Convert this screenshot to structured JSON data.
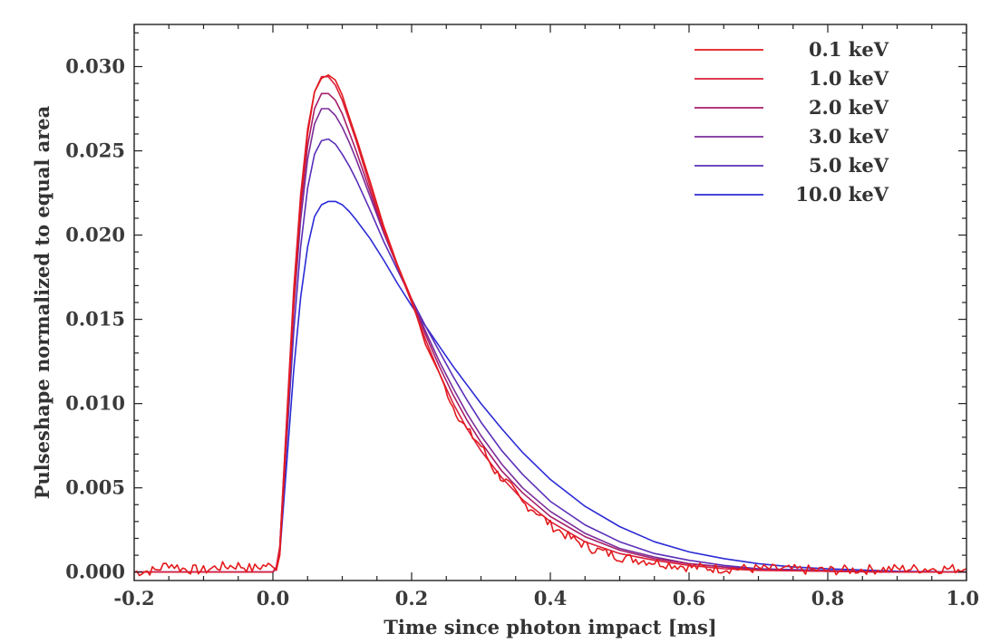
{
  "chart_data": {
    "type": "line",
    "xlabel": "Time since photon impact [ms]",
    "ylabel": "Pulseshape normalized to equal area",
    "xlim": [
      -0.2,
      1.0
    ],
    "ylim": [
      -0.0005,
      0.0325
    ],
    "x_ticks": [
      -0.2,
      0.0,
      0.2,
      0.4,
      0.6,
      0.8,
      1.0
    ],
    "x_tick_labels": [
      "-0.2",
      "0.0",
      "0.2",
      "0.4",
      "0.6",
      "0.8",
      "1.0"
    ],
    "y_ticks": [
      0.0,
      0.005,
      0.01,
      0.015,
      0.02,
      0.025,
      0.03
    ],
    "y_tick_labels": [
      "0.000",
      "0.005",
      "0.010",
      "0.015",
      "0.020",
      "0.025",
      "0.030"
    ],
    "grid": false,
    "legend_position": "top-right",
    "series": [
      {
        "name": "0.1 keV",
        "color": "#e41a1c",
        "noisy": true,
        "x": [
          -0.2,
          -0.17,
          -0.15,
          -0.13,
          -0.1,
          -0.08,
          -0.05,
          -0.03,
          -0.01,
          0.0,
          0.005,
          0.01,
          0.02,
          0.03,
          0.04,
          0.05,
          0.06,
          0.07,
          0.08,
          0.09,
          0.1,
          0.11,
          0.12,
          0.14,
          0.16,
          0.18,
          0.2,
          0.22,
          0.24,
          0.26,
          0.28,
          0.3,
          0.32,
          0.34,
          0.36,
          0.38,
          0.4,
          0.43,
          0.46,
          0.5,
          0.55,
          0.6,
          0.65,
          0.7,
          0.8,
          0.9,
          1.0
        ],
        "values": [
          0.0,
          0.0001,
          0.0005,
          0.0002,
          0.0001,
          0.0003,
          0.0004,
          0.0002,
          0.0004,
          0.0003,
          0.0001,
          0.001,
          0.0085,
          0.016,
          0.022,
          0.026,
          0.0285,
          0.0293,
          0.0295,
          0.0292,
          0.0283,
          0.027,
          0.0258,
          0.0232,
          0.0205,
          0.0182,
          0.0162,
          0.0135,
          0.0118,
          0.0098,
          0.0084,
          0.0075,
          0.006,
          0.0052,
          0.0041,
          0.0036,
          0.0028,
          0.002,
          0.0014,
          0.0009,
          0.0006,
          0.0003,
          0.0002,
          0.0002,
          0.0001,
          0.0002,
          0.0002
        ]
      },
      {
        "name": "1.0 keV",
        "color": "#d91f3a",
        "noisy": false,
        "x": [
          -0.2,
          -0.1,
          0.0,
          0.005,
          0.01,
          0.02,
          0.03,
          0.04,
          0.05,
          0.06,
          0.07,
          0.08,
          0.09,
          0.1,
          0.11,
          0.12,
          0.14,
          0.16,
          0.18,
          0.2,
          0.22,
          0.24,
          0.26,
          0.28,
          0.3,
          0.33,
          0.36,
          0.4,
          0.45,
          0.5,
          0.55,
          0.6,
          0.65,
          0.7,
          0.8,
          0.9,
          1.0
        ],
        "values": [
          0.0,
          0.0,
          0.0,
          0.0003,
          0.0015,
          0.0092,
          0.0168,
          0.0224,
          0.0263,
          0.0285,
          0.0294,
          0.0294,
          0.0289,
          0.028,
          0.0268,
          0.0256,
          0.0229,
          0.0203,
          0.0181,
          0.016,
          0.0138,
          0.0118,
          0.01,
          0.0085,
          0.0072,
          0.0056,
          0.0043,
          0.003,
          0.0018,
          0.0011,
          0.0007,
          0.0004,
          0.0002,
          0.0001,
          5e-05,
          0.0,
          0.0
        ]
      },
      {
        "name": "2.0 keV",
        "color": "#a61e6a",
        "noisy": false,
        "x": [
          -0.2,
          -0.1,
          0.0,
          0.005,
          0.01,
          0.02,
          0.03,
          0.04,
          0.05,
          0.06,
          0.07,
          0.08,
          0.09,
          0.1,
          0.11,
          0.12,
          0.14,
          0.16,
          0.18,
          0.2,
          0.22,
          0.24,
          0.26,
          0.28,
          0.3,
          0.33,
          0.36,
          0.4,
          0.45,
          0.5,
          0.55,
          0.6,
          0.65,
          0.7,
          0.8,
          0.9,
          1.0
        ],
        "values": [
          0.0,
          0.0,
          0.0,
          0.0003,
          0.0015,
          0.009,
          0.0162,
          0.0216,
          0.0253,
          0.0275,
          0.0284,
          0.0284,
          0.028,
          0.0272,
          0.0261,
          0.025,
          0.0226,
          0.0202,
          0.0181,
          0.0161,
          0.0141,
          0.0122,
          0.0105,
          0.009,
          0.0077,
          0.006,
          0.0047,
          0.0033,
          0.0021,
          0.0013,
          0.0008,
          0.0005,
          0.0003,
          0.00015,
          5e-05,
          0.0,
          0.0
        ]
      },
      {
        "name": "3.0 keV",
        "color": "#7b2d9a",
        "noisy": false,
        "x": [
          -0.2,
          -0.1,
          0.0,
          0.005,
          0.01,
          0.02,
          0.03,
          0.04,
          0.05,
          0.06,
          0.07,
          0.08,
          0.09,
          0.1,
          0.11,
          0.12,
          0.14,
          0.16,
          0.18,
          0.2,
          0.22,
          0.24,
          0.26,
          0.28,
          0.3,
          0.33,
          0.36,
          0.4,
          0.45,
          0.5,
          0.55,
          0.6,
          0.65,
          0.7,
          0.8,
          0.9,
          1.0
        ],
        "values": [
          0.0,
          0.0,
          0.0,
          0.0003,
          0.0014,
          0.0086,
          0.0156,
          0.0209,
          0.0245,
          0.0266,
          0.0275,
          0.0275,
          0.0271,
          0.0264,
          0.0255,
          0.0245,
          0.0223,
          0.0201,
          0.0181,
          0.0162,
          0.0143,
          0.0125,
          0.0109,
          0.0094,
          0.0081,
          0.0064,
          0.005,
          0.0036,
          0.0023,
          0.0014,
          0.0009,
          0.0005,
          0.0003,
          0.00015,
          5e-05,
          0.0,
          0.0
        ]
      },
      {
        "name": "5.0 keV",
        "color": "#5a2fb8",
        "noisy": false,
        "x": [
          -0.2,
          -0.1,
          0.0,
          0.005,
          0.01,
          0.02,
          0.03,
          0.04,
          0.05,
          0.06,
          0.07,
          0.08,
          0.09,
          0.1,
          0.11,
          0.12,
          0.14,
          0.16,
          0.18,
          0.2,
          0.22,
          0.24,
          0.26,
          0.28,
          0.3,
          0.33,
          0.36,
          0.4,
          0.45,
          0.5,
          0.55,
          0.6,
          0.65,
          0.7,
          0.8,
          0.9,
          1.0
        ],
        "values": [
          0.0,
          0.0,
          0.0,
          0.0003,
          0.0013,
          0.0078,
          0.0143,
          0.0193,
          0.0228,
          0.0248,
          0.0256,
          0.0257,
          0.0254,
          0.0248,
          0.0241,
          0.0233,
          0.0215,
          0.0196,
          0.0179,
          0.0162,
          0.0146,
          0.0131,
          0.0116,
          0.0102,
          0.0089,
          0.0072,
          0.0058,
          0.0042,
          0.0028,
          0.0018,
          0.0011,
          0.0007,
          0.0004,
          0.0002,
          0.0001,
          0.0,
          0.0
        ]
      },
      {
        "name": "10.0 keV",
        "color": "#2b2bd6",
        "noisy": false,
        "x": [
          -0.2,
          -0.1,
          0.0,
          0.005,
          0.01,
          0.02,
          0.03,
          0.04,
          0.05,
          0.06,
          0.07,
          0.08,
          0.09,
          0.1,
          0.11,
          0.12,
          0.14,
          0.16,
          0.18,
          0.2,
          0.22,
          0.24,
          0.26,
          0.28,
          0.3,
          0.33,
          0.36,
          0.4,
          0.45,
          0.5,
          0.55,
          0.6,
          0.65,
          0.7,
          0.75,
          0.8,
          0.9,
          1.0
        ],
        "values": [
          0.0,
          0.0,
          0.0,
          0.0002,
          0.0011,
          0.0065,
          0.012,
          0.0163,
          0.0193,
          0.0211,
          0.0218,
          0.022,
          0.022,
          0.0218,
          0.0214,
          0.0209,
          0.0198,
          0.0185,
          0.0171,
          0.0158,
          0.0146,
          0.0134,
          0.0122,
          0.0111,
          0.01,
          0.0085,
          0.0071,
          0.0055,
          0.0039,
          0.0027,
          0.0018,
          0.0012,
          0.0008,
          0.0005,
          0.0003,
          0.0002,
          5e-05,
          0.0
        ]
      }
    ]
  }
}
